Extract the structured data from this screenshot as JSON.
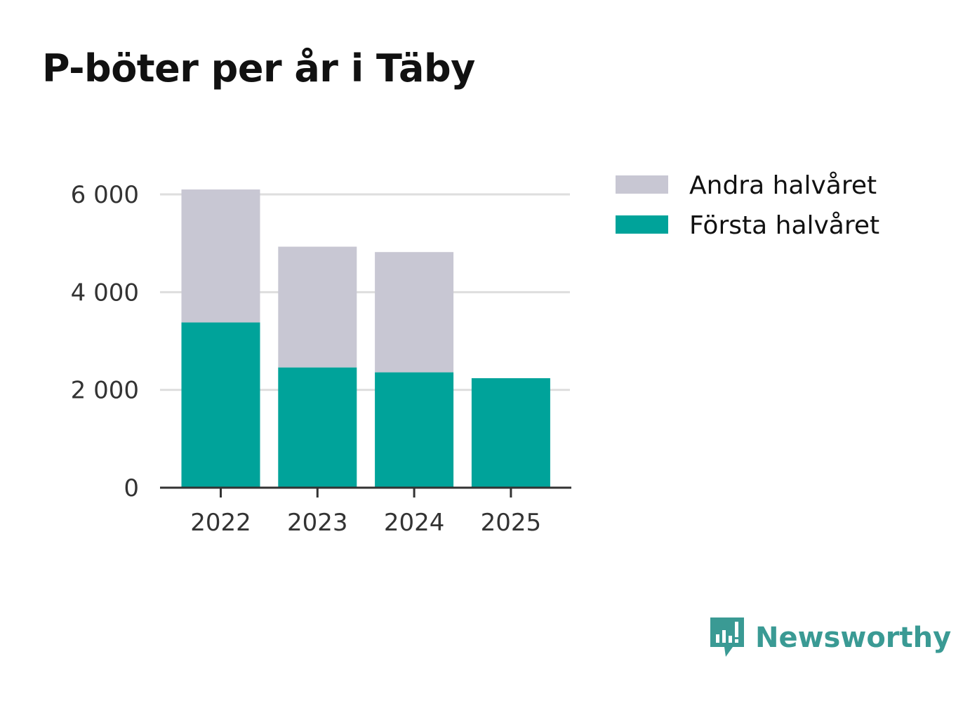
{
  "chart_data": {
    "type": "bar",
    "stacked": true,
    "title": "P-böter per år i Täby",
    "categories": [
      "2022",
      "2023",
      "2024",
      "2025"
    ],
    "series": [
      {
        "name": "Första halvåret",
        "color": "#00a39a",
        "values": [
          3380,
          2460,
          2360,
          2240
        ]
      },
      {
        "name": "Andra halvåret",
        "color": "#c8c7d3",
        "values": [
          2720,
          2470,
          2460,
          0
        ]
      }
    ],
    "legend": [
      "Andra halvåret",
      "Första halvåret"
    ],
    "legend_position": "right",
    "yticks": [
      0,
      2000,
      4000,
      6000
    ],
    "ytick_labels": [
      "0",
      "2 000",
      "4 000",
      "6 000"
    ],
    "ylim": [
      0,
      6000
    ],
    "xlabel": "",
    "ylabel": "",
    "grid": true
  },
  "brand": {
    "name": "Newsworthy",
    "icon": "newsworthy-logo-icon",
    "color": "#3a9a94"
  }
}
